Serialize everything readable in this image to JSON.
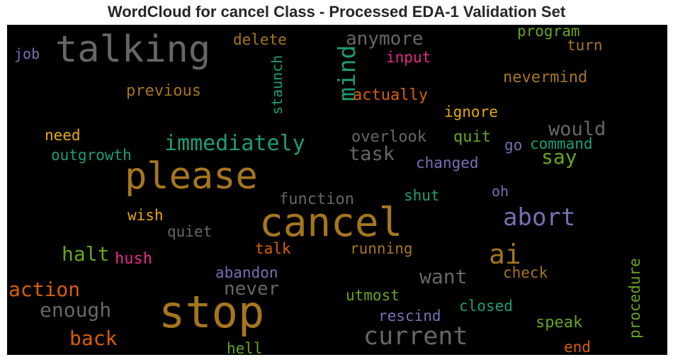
{
  "chart_data": {
    "type": "wordcloud",
    "title": "WordCloud for cancel Class - Processed EDA-1 Validation Set",
    "background": "#000000",
    "words": [
      {
        "text": "talking",
        "color": "#666666"
      },
      {
        "text": "job",
        "color": "#7570b3"
      },
      {
        "text": "delete",
        "color": "#a6761d"
      },
      {
        "text": "mind",
        "color": "#1b9e77"
      },
      {
        "text": "anymore",
        "color": "#666666"
      },
      {
        "text": "program",
        "color": "#66a61e"
      },
      {
        "text": "turn",
        "color": "#a6761d"
      },
      {
        "text": "input",
        "color": "#e7298a"
      },
      {
        "text": "nevermind",
        "color": "#a6761d"
      },
      {
        "text": "staunch",
        "color": "#1b9e77"
      },
      {
        "text": "previous",
        "color": "#a6761d"
      },
      {
        "text": "actually",
        "color": "#d95f02"
      },
      {
        "text": "ignore",
        "color": "#e6ab02"
      },
      {
        "text": "would",
        "color": "#666666"
      },
      {
        "text": "need",
        "color": "#e6ab02"
      },
      {
        "text": "immediately",
        "color": "#1b9e77"
      },
      {
        "text": "overlook",
        "color": "#666666"
      },
      {
        "text": "quit",
        "color": "#66a61e"
      },
      {
        "text": "go",
        "color": "#7570b3"
      },
      {
        "text": "command",
        "color": "#1b9e77"
      },
      {
        "text": "outgrowth",
        "color": "#1b9e77"
      },
      {
        "text": "task",
        "color": "#666666"
      },
      {
        "text": "say",
        "color": "#66a61e"
      },
      {
        "text": "changed",
        "color": "#7570b3"
      },
      {
        "text": "please",
        "color": "#a6761d"
      },
      {
        "text": "function",
        "color": "#666666"
      },
      {
        "text": "shut",
        "color": "#1b9e77"
      },
      {
        "text": "oh",
        "color": "#7570b3"
      },
      {
        "text": "wish",
        "color": "#e6ab02"
      },
      {
        "text": "cancel",
        "color": "#a6761d"
      },
      {
        "text": "abort",
        "color": "#7570b3"
      },
      {
        "text": "quiet",
        "color": "#666666"
      },
      {
        "text": "halt",
        "color": "#66a61e"
      },
      {
        "text": "hush",
        "color": "#e7298a"
      },
      {
        "text": "talk",
        "color": "#d95f02"
      },
      {
        "text": "running",
        "color": "#a6761d"
      },
      {
        "text": "ai",
        "color": "#a6761d"
      },
      {
        "text": "procedure",
        "color": "#66a61e"
      },
      {
        "text": "abandon",
        "color": "#7570b3"
      },
      {
        "text": "want",
        "color": "#666666"
      },
      {
        "text": "check",
        "color": "#a6761d"
      },
      {
        "text": "action",
        "color": "#d95f02"
      },
      {
        "text": "never",
        "color": "#666666"
      },
      {
        "text": "utmost",
        "color": "#66a61e"
      },
      {
        "text": "stop",
        "color": "#a6761d"
      },
      {
        "text": "enough",
        "color": "#666666"
      },
      {
        "text": "closed",
        "color": "#1b9e77"
      },
      {
        "text": "rescind",
        "color": "#7570b3"
      },
      {
        "text": "speak",
        "color": "#66a61e"
      },
      {
        "text": "back",
        "color": "#d95f02"
      },
      {
        "text": "current",
        "color": "#666666"
      },
      {
        "text": "hell",
        "color": "#66a61e"
      },
      {
        "text": "end",
        "color": "#d95f02"
      }
    ]
  }
}
